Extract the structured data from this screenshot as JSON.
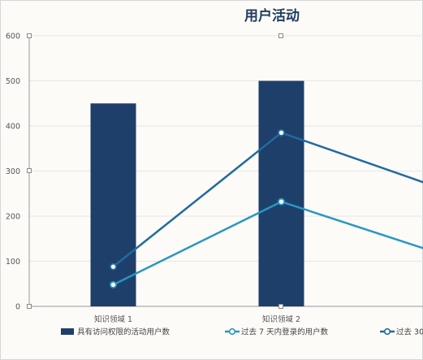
{
  "chart_data": {
    "type": "bar",
    "title": "用户活动",
    "categories": [
      "知识领域 1",
      "知识领域 2",
      ""
    ],
    "ylim": [
      0,
      600
    ],
    "yticks": [
      0,
      100,
      200,
      300,
      400,
      500,
      600
    ],
    "grid": true,
    "legend_position": "bottom",
    "colors": [
      "#1f3f6b",
      "#2797c4",
      "#226a9e"
    ],
    "series": [
      {
        "name": "具有访问权限的活动用户数",
        "type": "bar",
        "values": [
          450,
          500,
          null
        ]
      },
      {
        "name": "过去 7 天内登录的用户数",
        "type": "line",
        "values": [
          48,
          232,
          110
        ]
      },
      {
        "name": "过去 30",
        "type": "line",
        "values": [
          88,
          385,
          255
        ]
      }
    ]
  }
}
